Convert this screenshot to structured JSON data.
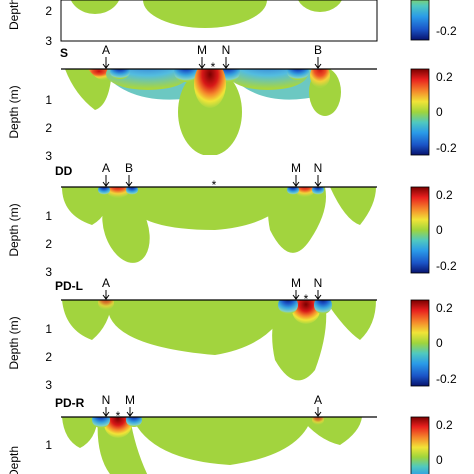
{
  "figure": {
    "y_axis_label": "Depth (m)",
    "depth_ticks": [
      "1",
      "2",
      "3"
    ],
    "colorbar_ticks": [
      "0.2",
      "0",
      "-0.2"
    ],
    "colorbar_colors": [
      "#7a0000",
      "#e8201e",
      "#f58a2c",
      "#f1e437",
      "#9fd53c",
      "#50c9bf",
      "#2a9be8",
      "#1b55c8",
      "#08136e"
    ],
    "background_field_color": "#9fd442",
    "source_marker": "*",
    "panels": [
      {
        "id": "partial-top",
        "title": "",
        "electrodes": [],
        "visible_depth_ticks": [
          "2"
        ],
        "colorbar_ticks": [
          "-0.2"
        ],
        "partial": "top"
      },
      {
        "id": "s",
        "title": "S",
        "electrodes": [
          "A",
          "M",
          "N",
          "B"
        ],
        "visible_depth_ticks": [
          "1",
          "2",
          "3"
        ],
        "colorbar_ticks": [
          "0.2",
          "0",
          "-0.2"
        ]
      },
      {
        "id": "dd",
        "title": "DD",
        "electrodes": [
          "A",
          "B",
          "M",
          "N"
        ],
        "visible_depth_ticks": [
          "1",
          "2",
          "3"
        ],
        "colorbar_ticks": [
          "0.2",
          "0",
          "-0.2"
        ]
      },
      {
        "id": "pd-l",
        "title": "PD-L",
        "electrodes": [
          "A",
          "M",
          "N"
        ],
        "visible_depth_ticks": [
          "1",
          "2",
          "3"
        ],
        "colorbar_ticks": [
          "0.2",
          "0",
          "-0.2"
        ]
      },
      {
        "id": "pd-r",
        "title": "PD-R",
        "electrodes": [
          "N",
          "M",
          "A"
        ],
        "visible_depth_ticks": [
          "1"
        ],
        "colorbar_ticks": [
          "0.2",
          "0"
        ],
        "partial": "bottom"
      }
    ]
  }
}
